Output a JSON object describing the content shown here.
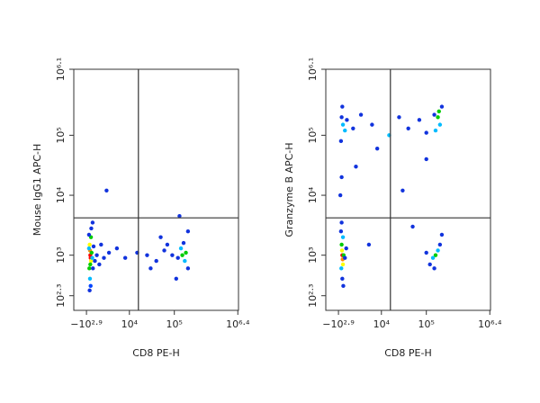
{
  "chart_data": [
    {
      "type": "scatter",
      "xlabel": "CD8 PE-H",
      "ylabel": "Mouse IgG1 APC-H",
      "xscale": "biexponential",
      "yscale": "biexponential",
      "xlim": [
        -3100,
        2600000
      ],
      "ylim": [
        100,
        1258925
      ],
      "xticks": [
        {
          "value": -794,
          "label": "−10²·⁹"
        },
        {
          "value": 10000,
          "label": "10⁴"
        },
        {
          "value": 100000,
          "label": "10⁵"
        },
        {
          "value": 2511886,
          "label": "10⁶·⁴"
        }
      ],
      "yticks": [
        {
          "value": 200,
          "label": "10²·³"
        },
        {
          "value": 1000,
          "label": "10³"
        },
        {
          "value": 10000,
          "label": "10⁴"
        },
        {
          "value": 100000,
          "label": "10⁵"
        },
        {
          "value": 1258925,
          "label": "10⁶·¹"
        }
      ],
      "gate_x": 16000,
      "gate_y": 4200,
      "x": [
        -200,
        -150,
        -250,
        -100,
        -300,
        -200,
        0,
        -350,
        -100,
        -250,
        100,
        -400,
        -150,
        200,
        -50,
        300,
        -300,
        500,
        150,
        -400,
        800,
        1200,
        2000,
        3000,
        1500,
        2500,
        150000,
        170000,
        140000,
        180000,
        120000,
        200000,
        160000,
        90000,
        60000,
        40000,
        25000,
        15000,
        8000,
        5000,
        30000,
        70000,
        110000,
        50000,
        200000,
        130000
      ],
      "values": [
        1000,
        900,
        1200,
        800,
        1500,
        700,
        1100,
        600,
        2000,
        400,
        900,
        1300,
        300,
        600,
        2800,
        1400,
        250,
        800,
        3500,
        2200,
        1000,
        700,
        900,
        1100,
        1500,
        12000,
        1000,
        800,
        1300,
        1100,
        900,
        600,
        1600,
        1000,
        1200,
        800,
        1000,
        1100,
        900,
        1300,
        600,
        1500,
        400,
        2000,
        2500,
        4500
      ],
      "colors": [
        "#f00",
        "#f00",
        "#f80",
        "#ff0",
        "#ff0",
        "#0c0",
        "#0c0",
        "#0c0",
        "#0c0",
        "#0bf",
        "#0bf",
        "#0bf",
        "#04f",
        "#13d",
        "#13d",
        "#13d",
        "#13d",
        "#13d",
        "#13d",
        "#13d",
        "#13d",
        "#13d",
        "#13d",
        "#13d",
        "#13d",
        "#13d",
        "#0c0",
        "#0bf",
        "#0bf",
        "#0c0",
        "#13d",
        "#13d",
        "#13d",
        "#13d",
        "#13d",
        "#13d",
        "#13d",
        "#13d",
        "#13d",
        "#13d",
        "#13d",
        "#13d",
        "#13d",
        "#13d",
        "#13d",
        "#13d"
      ]
    },
    {
      "type": "scatter",
      "xlabel": "CD8 PE-H",
      "ylabel": "Granzyme B APC-H",
      "xscale": "biexponential",
      "yscale": "biexponential",
      "xlim": [
        -3100,
        2600000
      ],
      "ylim": [
        100,
        1258925
      ],
      "xticks": [
        {
          "value": -794,
          "label": "−10²·⁹"
        },
        {
          "value": 10000,
          "label": "10⁴"
        },
        {
          "value": 100000,
          "label": "10⁵"
        },
        {
          "value": 2511886,
          "label": "10⁶·⁴"
        }
      ],
      "yticks": [
        {
          "value": 200,
          "label": "10²·³"
        },
        {
          "value": 1000,
          "label": "10³"
        },
        {
          "value": 10000,
          "label": "10⁴"
        },
        {
          "value": 100000,
          "label": "10⁵"
        },
        {
          "value": 1258925,
          "label": "10⁶·¹"
        }
      ],
      "gate_x": 16000,
      "gate_y": 4200,
      "x": [
        -200,
        -150,
        -250,
        -100,
        -300,
        0,
        -350,
        -100,
        -200,
        200,
        -400,
        -50,
        400,
        -300,
        160000,
        140000,
        180000,
        120000,
        200000,
        150000,
        100000,
        220000,
        180000,
        200000,
        190000,
        160000,
        220000,
        150000,
        -100,
        -300,
        200,
        500,
        1500,
        3000,
        6000,
        15000,
        25000,
        40000,
        70000,
        100000,
        -400,
        -200,
        8000,
        2000,
        -300,
        100000,
        30000,
        50000,
        5000,
        -500
      ],
      "values": [
        1000,
        850,
        1200,
        700,
        1500,
        1000,
        600,
        2000,
        400,
        900,
        2500,
        300,
        1300,
        3500,
        1000,
        900,
        1200,
        700,
        1500,
        600,
        1100,
        2200,
        200000,
        150000,
        250000,
        120000,
        300000,
        220000,
        150000,
        200000,
        120000,
        180000,
        130000,
        220000,
        150000,
        100000,
        200000,
        130000,
        180000,
        110000,
        80000,
        300000,
        60000,
        30000,
        20000,
        40000,
        12000,
        3000,
        1500,
        10000
      ],
      "colors": [
        "#f00",
        "#f80",
        "#ff0",
        "#ff0",
        "#0c0",
        "#0c0",
        "#0bf",
        "#0bf",
        "#13d",
        "#13d",
        "#13d",
        "#13d",
        "#13d",
        "#13d",
        "#0c0",
        "#0bf",
        "#0bf",
        "#13d",
        "#13d",
        "#13d",
        "#13d",
        "#13d",
        "#0c0",
        "#0bf",
        "#0c0",
        "#0bf",
        "#13d",
        "#13d",
        "#0bf",
        "#13d",
        "#0bf",
        "#13d",
        "#13d",
        "#13d",
        "#13d",
        "#0bf",
        "#13d",
        "#13d",
        "#13d",
        "#13d",
        "#13d",
        "#13d",
        "#13d",
        "#13d",
        "#13d",
        "#13d",
        "#13d",
        "#13d",
        "#13d",
        "#13d"
      ]
    }
  ]
}
